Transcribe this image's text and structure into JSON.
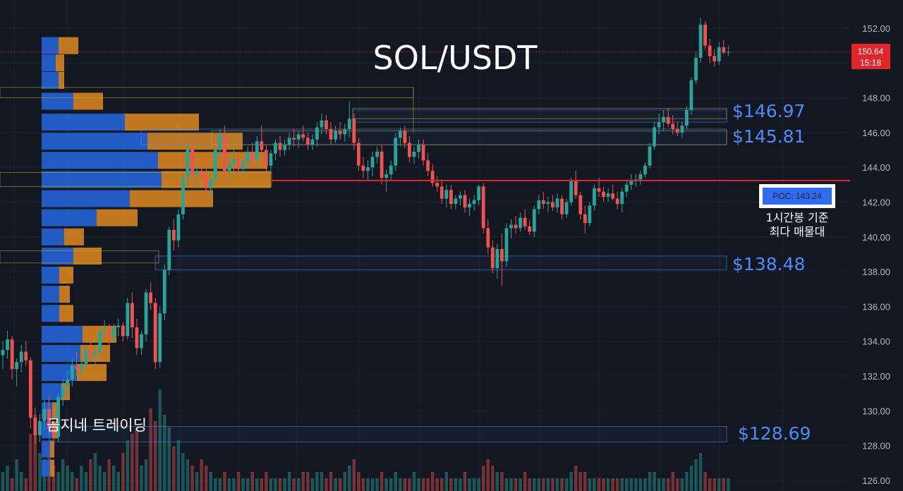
{
  "chart_data": {
    "type": "candlestick",
    "title": "SOL/USDT",
    "ylim": [
      125.4,
      153.4
    ],
    "y_ticks": [
      "152.00",
      "150.00",
      "148.00",
      "146.00",
      "144.00",
      "142.00",
      "140.00",
      "138.00",
      "136.00",
      "134.00",
      "132.00",
      "130.00",
      "128.00",
      "126.00"
    ],
    "current_price": "150.64",
    "countdown": "15:18",
    "poc": {
      "label": "POC: 143.24",
      "value": 143.24,
      "note_line1": "1시간봉 기준",
      "note_line2": "최다 매물대"
    },
    "zones": [
      {
        "label": "$146.97",
        "low": 146.6,
        "high": 147.3
      },
      {
        "label": "$145.81",
        "low": 145.3,
        "high": 146.2
      },
      {
        "label": "$138.48",
        "low": 138.1,
        "high": 138.9
      },
      {
        "label": "$128.69",
        "low": 128.2,
        "high": 129.1
      }
    ],
    "volume_profile_rows": [
      {
        "y": 151.0,
        "buy": 24,
        "sell": 28
      },
      {
        "y": 150.0,
        "buy": 20,
        "sell": 12
      },
      {
        "y": 149.0,
        "buy": 24,
        "sell": 8
      },
      {
        "y": 147.8,
        "buy": 45,
        "sell": 42
      },
      {
        "y": 146.6,
        "buy": 118,
        "sell": 105
      },
      {
        "y": 145.5,
        "buy": 150,
        "sell": 135
      },
      {
        "y": 144.4,
        "buy": 165,
        "sell": 155
      },
      {
        "y": 143.3,
        "buy": 170,
        "sell": 155
      },
      {
        "y": 142.2,
        "buy": 125,
        "sell": 118
      },
      {
        "y": 141.1,
        "buy": 78,
        "sell": 58
      },
      {
        "y": 140.0,
        "buy": 32,
        "sell": 28
      },
      {
        "y": 138.9,
        "buy": 45,
        "sell": 40
      },
      {
        "y": 137.8,
        "buy": 25,
        "sell": 20
      },
      {
        "y": 136.7,
        "buy": 25,
        "sell": 15
      },
      {
        "y": 135.6,
        "buy": 25,
        "sell": 20
      },
      {
        "y": 134.4,
        "buy": 58,
        "sell": 48
      },
      {
        "y": 133.3,
        "buy": 55,
        "sell": 42
      },
      {
        "y": 132.2,
        "buy": 50,
        "sell": 42
      },
      {
        "y": 131.1,
        "buy": 28,
        "sell": 12
      },
      {
        "y": 130.0,
        "buy": 15,
        "sell": 8
      },
      {
        "y": 128.9,
        "buy": 15,
        "sell": 8
      },
      {
        "y": 127.8,
        "buy": 12,
        "sell": 6
      },
      {
        "y": 126.7,
        "buy": 12,
        "sell": 6
      }
    ],
    "candles": [
      [
        0,
        133.2,
        134.0,
        132.4,
        133.5
      ],
      [
        1,
        133.5,
        134.6,
        133.0,
        134.1
      ],
      [
        2,
        134.1,
        134.3,
        131.8,
        132.4
      ],
      [
        3,
        132.4,
        133.0,
        131.4,
        132.8
      ],
      [
        4,
        132.8,
        133.8,
        132.2,
        133.4
      ],
      [
        5,
        133.4,
        134.0,
        132.6,
        132.9
      ],
      [
        6,
        132.9,
        133.1,
        129.0,
        129.6
      ],
      [
        7,
        129.6,
        130.2,
        128.1,
        128.6
      ],
      [
        8,
        128.6,
        129.8,
        128.2,
        129.4
      ],
      [
        9,
        129.4,
        130.6,
        128.9,
        130.1
      ],
      [
        10,
        130.1,
        130.8,
        128.7,
        129.0
      ],
      [
        11,
        129.0,
        129.4,
        127.8,
        128.5
      ],
      [
        12,
        128.5,
        131.0,
        128.2,
        130.8
      ],
      [
        13,
        130.8,
        131.8,
        130.3,
        131.4
      ],
      [
        14,
        131.4,
        132.3,
        130.9,
        131.8
      ],
      [
        15,
        131.8,
        133.0,
        131.4,
        132.6
      ],
      [
        16,
        132.6,
        133.4,
        132.0,
        132.4
      ],
      [
        17,
        132.4,
        133.0,
        131.9,
        132.7
      ],
      [
        18,
        132.7,
        133.8,
        132.4,
        133.5
      ],
      [
        19,
        133.5,
        134.3,
        133.0,
        133.2
      ],
      [
        20,
        133.2,
        133.8,
        132.6,
        133.4
      ],
      [
        21,
        133.4,
        134.8,
        133.0,
        134.6
      ],
      [
        22,
        134.6,
        135.2,
        134.2,
        134.7
      ],
      [
        23,
        134.7,
        135.0,
        133.8,
        134.2
      ],
      [
        24,
        134.2,
        135.0,
        133.9,
        134.8
      ],
      [
        25,
        134.8,
        135.3,
        134.3,
        134.9
      ],
      [
        26,
        134.9,
        135.1,
        134.0,
        134.3
      ],
      [
        27,
        134.3,
        136.5,
        134.1,
        136.2
      ],
      [
        28,
        136.2,
        136.8,
        134.2,
        134.8
      ],
      [
        29,
        134.8,
        135.3,
        133.2,
        133.6
      ],
      [
        30,
        133.6,
        134.6,
        133.2,
        134.4
      ],
      [
        31,
        134.4,
        137.0,
        134.0,
        136.8
      ],
      [
        32,
        136.8,
        137.4,
        135.8,
        136.2
      ],
      [
        33,
        136.2,
        136.5,
        132.4,
        132.8
      ],
      [
        34,
        132.8,
        136.0,
        132.5,
        135.6
      ],
      [
        35,
        135.6,
        138.4,
        135.2,
        138.1
      ],
      [
        36,
        138.1,
        140.6,
        137.8,
        140.4
      ],
      [
        37,
        140.4,
        141.0,
        139.2,
        139.8
      ],
      [
        38,
        139.8,
        141.6,
        139.4,
        141.3
      ],
      [
        39,
        141.3,
        143.6,
        141.0,
        143.4
      ],
      [
        40,
        143.4,
        145.4,
        142.8,
        145.1
      ],
      [
        41,
        145.1,
        145.6,
        143.2,
        143.6
      ],
      [
        42,
        143.6,
        144.2,
        142.8,
        143.8
      ],
      [
        43,
        143.8,
        144.6,
        143.3,
        143.5
      ],
      [
        44,
        143.5,
        144.0,
        142.6,
        142.8
      ],
      [
        45,
        142.8,
        143.6,
        142.2,
        143.3
      ],
      [
        46,
        143.3,
        145.2,
        143.0,
        145.0
      ],
      [
        47,
        145.0,
        146.2,
        144.6,
        145.9
      ],
      [
        48,
        145.9,
        146.4,
        143.2,
        143.8
      ],
      [
        49,
        143.8,
        144.6,
        143.2,
        144.2
      ],
      [
        50,
        144.2,
        145.0,
        143.7,
        144.5
      ],
      [
        51,
        144.5,
        144.9,
        143.6,
        143.9
      ],
      [
        52,
        143.9,
        144.6,
        143.5,
        144.3
      ],
      [
        53,
        144.3,
        145.2,
        143.9,
        144.9
      ],
      [
        54,
        144.9,
        145.4,
        144.0,
        144.4
      ],
      [
        55,
        144.4,
        145.8,
        144.1,
        145.5
      ],
      [
        56,
        145.5,
        146.4,
        144.8,
        145.0
      ],
      [
        57,
        145.0,
        145.3,
        143.8,
        144.1
      ],
      [
        58,
        144.1,
        145.0,
        143.6,
        144.8
      ],
      [
        59,
        144.8,
        145.6,
        144.4,
        145.4
      ],
      [
        60,
        145.4,
        145.8,
        144.6,
        145.0
      ],
      [
        61,
        145.0,
        145.6,
        144.7,
        145.3
      ],
      [
        62,
        145.3,
        146.0,
        145.0,
        145.7
      ],
      [
        63,
        145.7,
        146.2,
        145.2,
        145.6
      ],
      [
        64,
        145.6,
        146.1,
        145.1,
        145.9
      ],
      [
        65,
        145.9,
        146.4,
        145.5,
        145.7
      ],
      [
        66,
        145.7,
        146.0,
        145.0,
        145.3
      ],
      [
        67,
        145.3,
        145.9,
        145.0,
        145.6
      ],
      [
        68,
        145.6,
        146.6,
        145.2,
        146.3
      ],
      [
        69,
        146.3,
        147.1,
        145.9,
        146.7
      ],
      [
        70,
        146.7,
        147.0,
        145.9,
        146.2
      ],
      [
        71,
        146.2,
        146.6,
        145.3,
        145.6
      ],
      [
        72,
        145.6,
        146.4,
        145.4,
        146.1
      ],
      [
        73,
        146.1,
        146.6,
        145.6,
        145.9
      ],
      [
        74,
        145.9,
        146.5,
        145.5,
        146.2
      ],
      [
        75,
        146.2,
        147.8,
        145.7,
        146.8
      ],
      [
        76,
        146.8,
        147.1,
        145.0,
        145.4
      ],
      [
        77,
        145.4,
        145.7,
        143.8,
        144.1
      ],
      [
        78,
        144.1,
        144.6,
        143.4,
        143.8
      ],
      [
        79,
        143.8,
        144.4,
        143.2,
        144.0
      ],
      [
        80,
        144.0,
        144.9,
        143.5,
        144.6
      ],
      [
        81,
        144.6,
        145.2,
        144.2,
        144.9
      ],
      [
        82,
        144.9,
        145.3,
        143.0,
        143.4
      ],
      [
        83,
        143.4,
        143.9,
        142.6,
        143.6
      ],
      [
        84,
        143.6,
        144.4,
        143.3,
        144.1
      ],
      [
        85,
        144.1,
        146.0,
        143.8,
        145.7
      ],
      [
        86,
        145.7,
        146.3,
        145.2,
        146.1
      ],
      [
        87,
        146.1,
        146.4,
        145.1,
        145.4
      ],
      [
        88,
        145.4,
        145.8,
        144.3,
        144.6
      ],
      [
        89,
        144.6,
        145.2,
        144.2,
        144.9
      ],
      [
        90,
        144.9,
        145.6,
        144.5,
        145.3
      ],
      [
        91,
        145.3,
        145.6,
        144.1,
        144.4
      ],
      [
        92,
        144.4,
        144.8,
        143.5,
        143.8
      ],
      [
        93,
        143.8,
        144.2,
        142.9,
        143.1
      ],
      [
        94,
        143.1,
        143.5,
        142.6,
        142.9
      ],
      [
        95,
        142.9,
        143.3,
        141.9,
        142.2
      ],
      [
        96,
        142.2,
        143.0,
        141.7,
        142.7
      ],
      [
        97,
        142.7,
        143.0,
        141.6,
        141.9
      ],
      [
        98,
        141.9,
        142.4,
        141.6,
        142.2
      ],
      [
        99,
        142.2,
        142.6,
        141.8,
        142.4
      ],
      [
        100,
        142.4,
        142.7,
        141.4,
        141.7
      ],
      [
        101,
        141.7,
        142.2,
        141.2,
        141.9
      ],
      [
        102,
        141.9,
        142.4,
        141.5,
        142.1
      ],
      [
        103,
        142.1,
        143.0,
        141.8,
        142.9
      ],
      [
        104,
        142.9,
        143.1,
        140.2,
        140.5
      ],
      [
        105,
        140.5,
        141.0,
        139.0,
        139.4
      ],
      [
        106,
        139.4,
        139.8,
        137.9,
        138.2
      ],
      [
        107,
        138.2,
        139.6,
        137.6,
        139.3
      ],
      [
        108,
        139.3,
        140.2,
        137.2,
        138.6
      ],
      [
        109,
        138.6,
        140.8,
        138.3,
        140.5
      ],
      [
        110,
        140.5,
        141.0,
        139.9,
        140.7
      ],
      [
        111,
        140.7,
        141.2,
        140.2,
        140.5
      ],
      [
        112,
        140.5,
        141.4,
        140.3,
        141.1
      ],
      [
        113,
        141.1,
        141.6,
        140.4,
        140.6
      ],
      [
        114,
        140.6,
        141.0,
        140.1,
        140.3
      ],
      [
        115,
        140.3,
        141.8,
        140.0,
        141.6
      ],
      [
        116,
        141.6,
        142.4,
        141.3,
        142.1
      ],
      [
        117,
        142.1,
        142.6,
        141.6,
        141.9
      ],
      [
        118,
        141.9,
        142.3,
        141.4,
        142.0
      ],
      [
        119,
        142.0,
        142.4,
        141.5,
        141.7
      ],
      [
        120,
        141.7,
        142.5,
        141.4,
        142.2
      ],
      [
        121,
        142.2,
        142.4,
        141.0,
        141.3
      ],
      [
        122,
        141.3,
        142.2,
        141.1,
        142.0
      ],
      [
        123,
        142.0,
        143.4,
        141.8,
        143.2
      ],
      [
        124,
        143.2,
        143.8,
        142.2,
        142.4
      ],
      [
        125,
        142.4,
        142.6,
        141.0,
        141.3
      ],
      [
        126,
        141.3,
        141.8,
        140.2,
        140.8
      ],
      [
        127,
        140.8,
        142.0,
        140.6,
        141.8
      ],
      [
        128,
        141.8,
        143.0,
        141.5,
        142.8
      ],
      [
        129,
        142.8,
        143.4,
        142.3,
        142.6
      ],
      [
        130,
        142.6,
        142.9,
        142.0,
        142.3
      ],
      [
        131,
        142.3,
        142.8,
        142.0,
        142.5
      ],
      [
        132,
        142.5,
        143.0,
        142.1,
        142.2
      ],
      [
        133,
        142.2,
        142.6,
        141.6,
        141.9
      ],
      [
        134,
        141.9,
        142.8,
        141.4,
        142.6
      ],
      [
        135,
        142.6,
        143.3,
        142.3,
        143.0
      ],
      [
        136,
        143.0,
        143.6,
        142.7,
        143.2
      ],
      [
        137,
        143.2,
        143.6,
        142.9,
        143.3
      ],
      [
        138,
        143.3,
        143.8,
        143.0,
        143.6
      ],
      [
        139,
        143.6,
        144.3,
        143.4,
        144.1
      ],
      [
        140,
        144.1,
        145.4,
        143.9,
        145.2
      ],
      [
        141,
        145.2,
        146.6,
        145.0,
        146.3
      ],
      [
        142,
        146.3,
        147.1,
        145.9,
        146.6
      ],
      [
        143,
        146.6,
        147.3,
        146.1,
        146.9
      ],
      [
        144,
        146.9,
        147.4,
        146.3,
        146.5
      ],
      [
        145,
        146.5,
        147.0,
        145.9,
        146.2
      ],
      [
        146,
        146.2,
        146.6,
        145.8,
        146.0
      ],
      [
        147,
        146.0,
        146.6,
        145.7,
        146.4
      ],
      [
        148,
        146.4,
        147.5,
        146.2,
        147.3
      ],
      [
        149,
        147.3,
        149.2,
        147.0,
        149.0
      ],
      [
        150,
        149.0,
        150.6,
        148.8,
        150.3
      ],
      [
        151,
        150.3,
        152.6,
        150.0,
        152.2
      ],
      [
        152,
        152.2,
        152.4,
        150.8,
        151.0
      ],
      [
        153,
        151.0,
        151.4,
        150.0,
        150.4
      ],
      [
        154,
        150.4,
        150.8,
        149.8,
        150.1
      ],
      [
        155,
        150.1,
        151.2,
        149.9,
        150.9
      ],
      [
        156,
        150.9,
        151.3,
        150.5,
        150.6
      ],
      [
        157,
        150.6,
        151.0,
        150.4,
        150.64
      ]
    ],
    "volumes": [
      3,
      4,
      2,
      5,
      3,
      2,
      9,
      12,
      6,
      5,
      7,
      4,
      3,
      5,
      4,
      3,
      2,
      4,
      3,
      5,
      6,
      4,
      3,
      5,
      4,
      3,
      6,
      8,
      9,
      10,
      4,
      5,
      13,
      11,
      16,
      12,
      10,
      7,
      8,
      6,
      5,
      4,
      3,
      5,
      4,
      3,
      2,
      2,
      3,
      2,
      2,
      3,
      2,
      2,
      3,
      2,
      2,
      3,
      2,
      2,
      2,
      2,
      3,
      2,
      2,
      3,
      3,
      2,
      3,
      3,
      2,
      3,
      2,
      2,
      3,
      4,
      5,
      3,
      2,
      2,
      2,
      2,
      3,
      2,
      2,
      3,
      2,
      2,
      2,
      3,
      2,
      2,
      2,
      3,
      2,
      2,
      3,
      2,
      2,
      2,
      3,
      2,
      2,
      2,
      4,
      5,
      4,
      3,
      3,
      2,
      2,
      2,
      2,
      3,
      2,
      2,
      2,
      2,
      2,
      2,
      2,
      2,
      2,
      3,
      4,
      3,
      3,
      2,
      2,
      2,
      2,
      2,
      2,
      2,
      2,
      2,
      2,
      2,
      2,
      2,
      3,
      3,
      2,
      2,
      2,
      3,
      2,
      2,
      3,
      4,
      5,
      6,
      3,
      2,
      2,
      2,
      2,
      2
    ]
  },
  "watermark": "곰지네 트레이딩",
  "colors": {
    "bg": "#131722",
    "up": "#26a69a",
    "down": "#ef5350",
    "profile_buy": "#2563d6",
    "profile_sell": "#e08a1e",
    "zone_label": "#4c8cf5",
    "poc_line": "#e0262c",
    "current_price_bg": "#e0262c"
  }
}
